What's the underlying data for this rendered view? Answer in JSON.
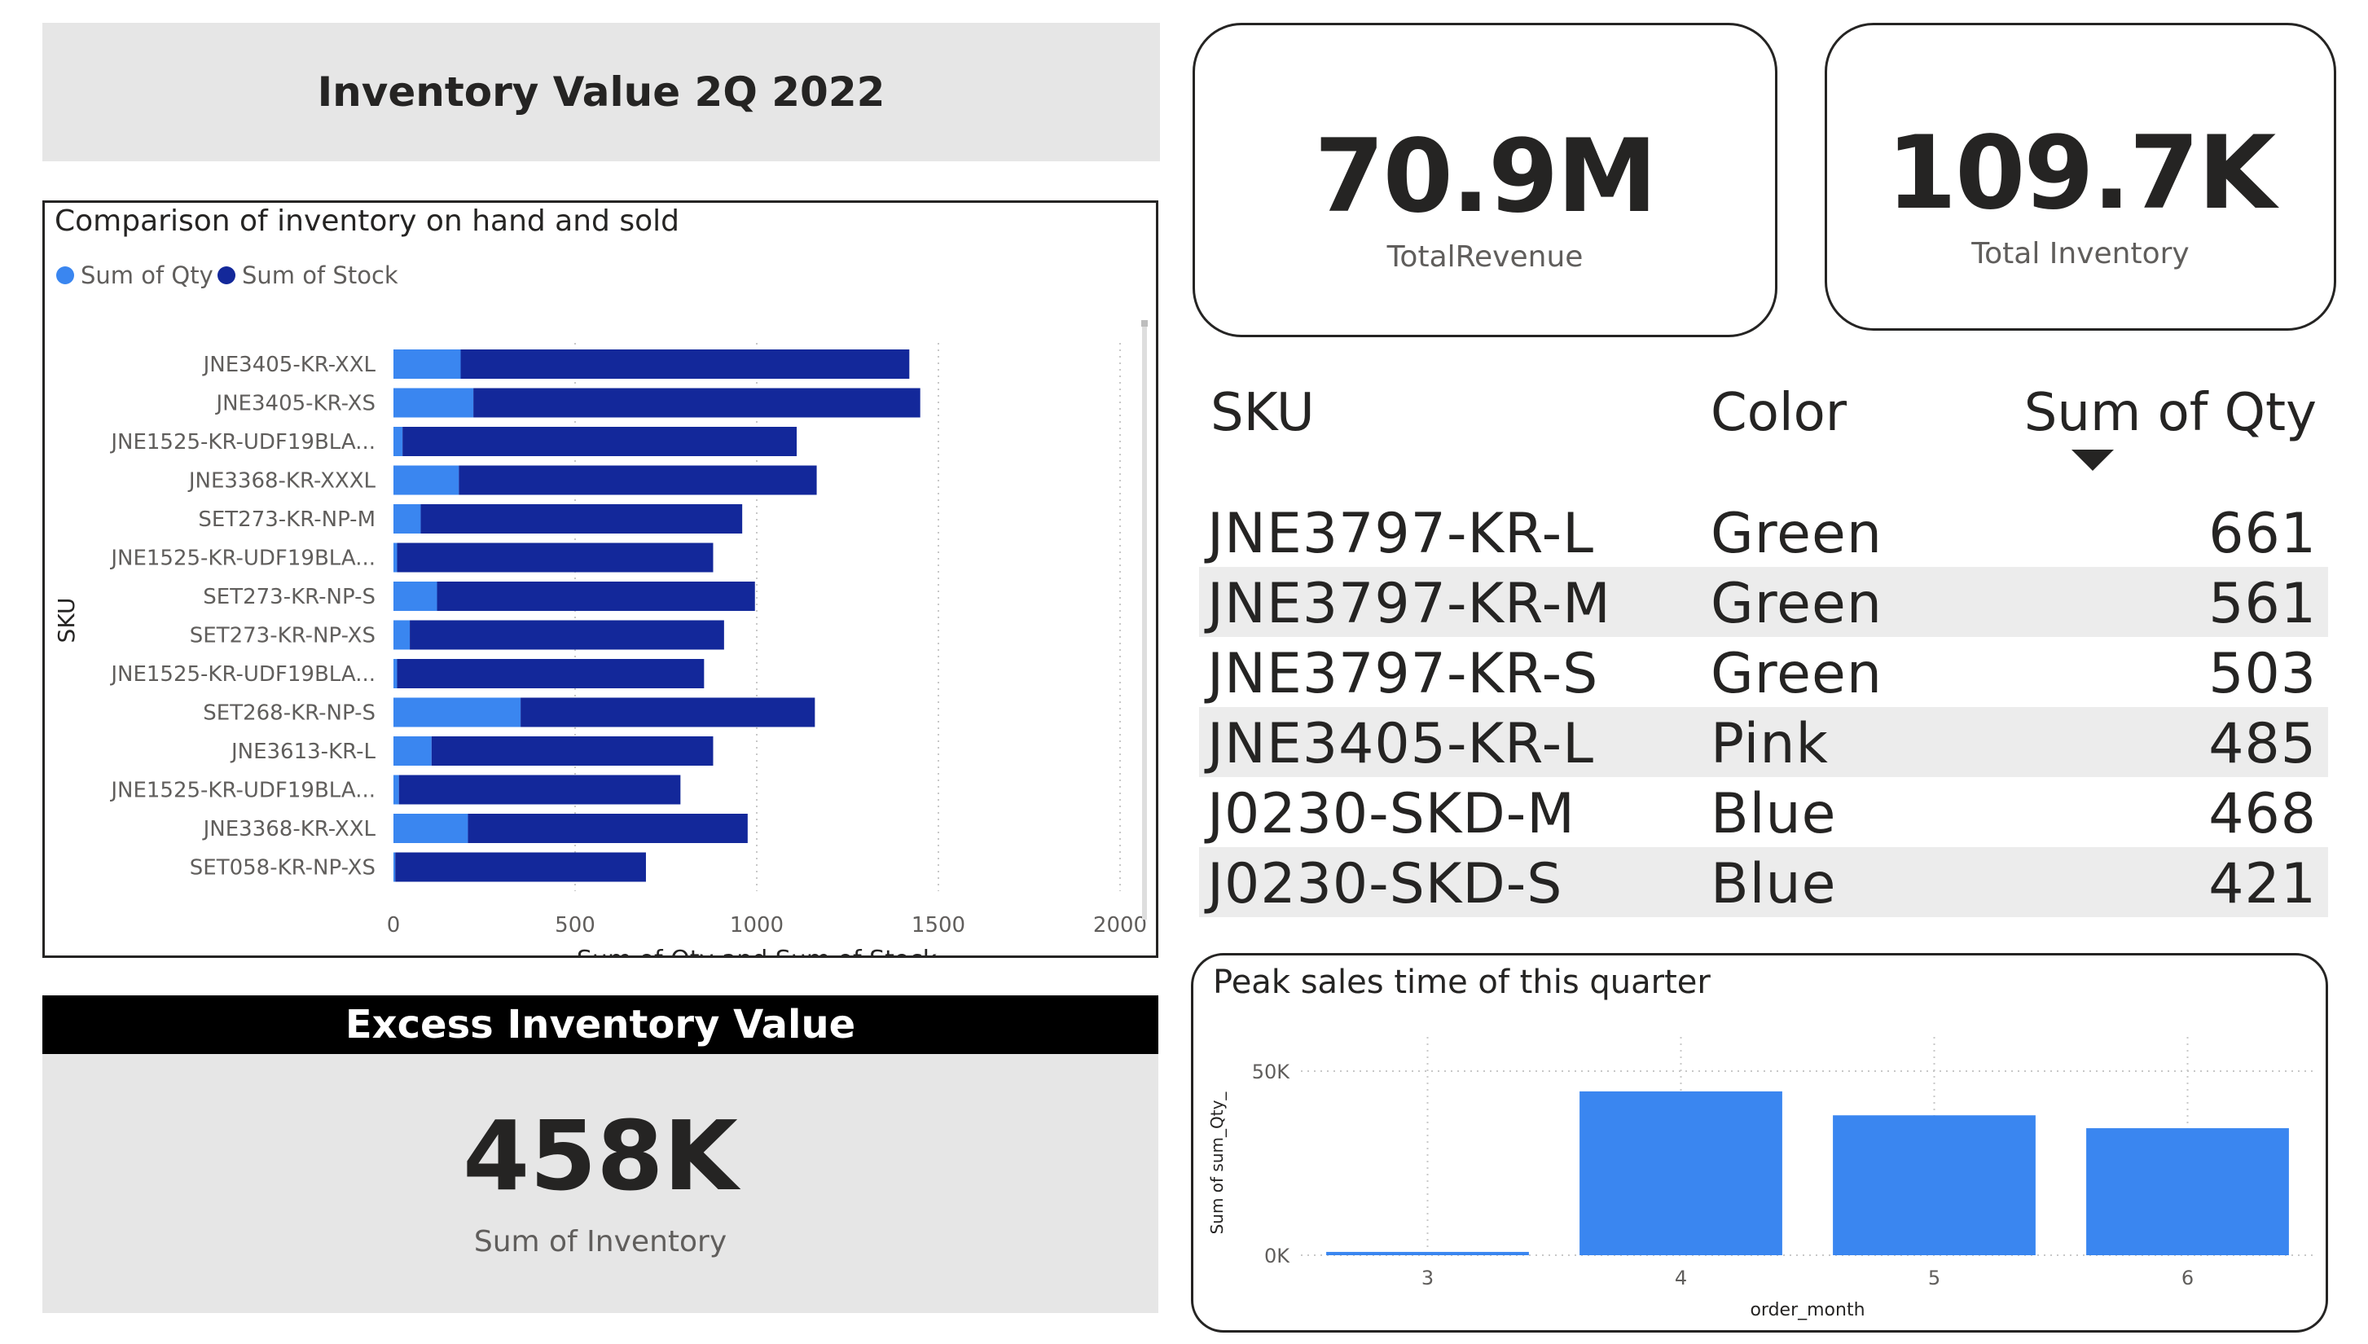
{
  "title": "Inventory Value 2Q 2022",
  "bar_chart": {
    "title": "Comparison of inventory on hand and sold",
    "legend": [
      {
        "label": "Sum of Qty",
        "color": "#3a86f0"
      },
      {
        "label": "Sum of Stock",
        "color": "#13289a"
      }
    ]
  },
  "kpis": {
    "revenue": {
      "value": "70.9M",
      "label": "TotalRevenue"
    },
    "inventory": {
      "value": "109.7K",
      "label": "Total Inventory"
    }
  },
  "table": {
    "headers": {
      "sku": "SKU",
      "color": "Color",
      "qty": "Sum of Qty"
    },
    "rows": [
      {
        "sku": "JNE3797-KR-L",
        "color": "Green",
        "qty": "661"
      },
      {
        "sku": "JNE3797-KR-M",
        "color": "Green",
        "qty": "561"
      },
      {
        "sku": "JNE3797-KR-S",
        "color": "Green",
        "qty": "503"
      },
      {
        "sku": "JNE3405-KR-L",
        "color": "Pink",
        "qty": "485"
      },
      {
        "sku": "J0230-SKD-M",
        "color": "Blue",
        "qty": "468"
      },
      {
        "sku": "J0230-SKD-S",
        "color": "Blue",
        "qty": "421"
      }
    ]
  },
  "excess": {
    "header": "Excess Inventory Value",
    "value": "458K",
    "label": "Sum of Inventory"
  },
  "peak": {
    "title": "Peak sales time of this quarter"
  },
  "chart_data": [
    {
      "type": "bar",
      "orientation": "horizontal",
      "stacked": true,
      "title": "Comparison of inventory on hand and sold",
      "xlabel": "Sum of Qty and Sum of Stock",
      "ylabel": "SKU",
      "xlim": [
        0,
        2000
      ],
      "xticks": [
        0,
        500,
        1000,
        1500,
        2000
      ],
      "grid": true,
      "legend_position": "top-left",
      "categories": [
        "JNE3405-KR-XXL",
        "JNE3405-KR-XS",
        "JNE1525-KR-UDF19BLA...",
        "JNE3368-KR-XXXL",
        "SET273-KR-NP-M",
        "JNE1525-KR-UDF19BLA...",
        "SET273-KR-NP-S",
        "SET273-KR-NP-XS",
        "JNE1525-KR-UDF19BLA...",
        "SET268-KR-NP-S",
        "JNE3613-KR-L",
        "JNE1525-KR-UDF19BLA...",
        "JNE3368-KR-XXL",
        "SET058-KR-NP-XS"
      ],
      "series": [
        {
          "name": "Sum of Qty",
          "color": "#3a86f0",
          "values": [
            185,
            220,
            25,
            180,
            75,
            10,
            120,
            45,
            10,
            350,
            105,
            15,
            205,
            5
          ]
        },
        {
          "name": "Sum of Stock",
          "color": "#13289a",
          "values": [
            1235,
            1230,
            1085,
            985,
            885,
            870,
            875,
            865,
            845,
            810,
            775,
            775,
            770,
            690
          ]
        }
      ]
    },
    {
      "type": "bar",
      "title": "Peak sales time of this quarter",
      "xlabel": "order_month",
      "ylabel": "Sum of sum_Qty_",
      "categories": [
        "3",
        "4",
        "5",
        "6"
      ],
      "values": [
        900,
        44500,
        38000,
        34500
      ],
      "ylim": [
        0,
        50000
      ],
      "yticks": [
        "0K",
        "50K"
      ],
      "grid": true,
      "color": "#3a86f0"
    }
  ]
}
